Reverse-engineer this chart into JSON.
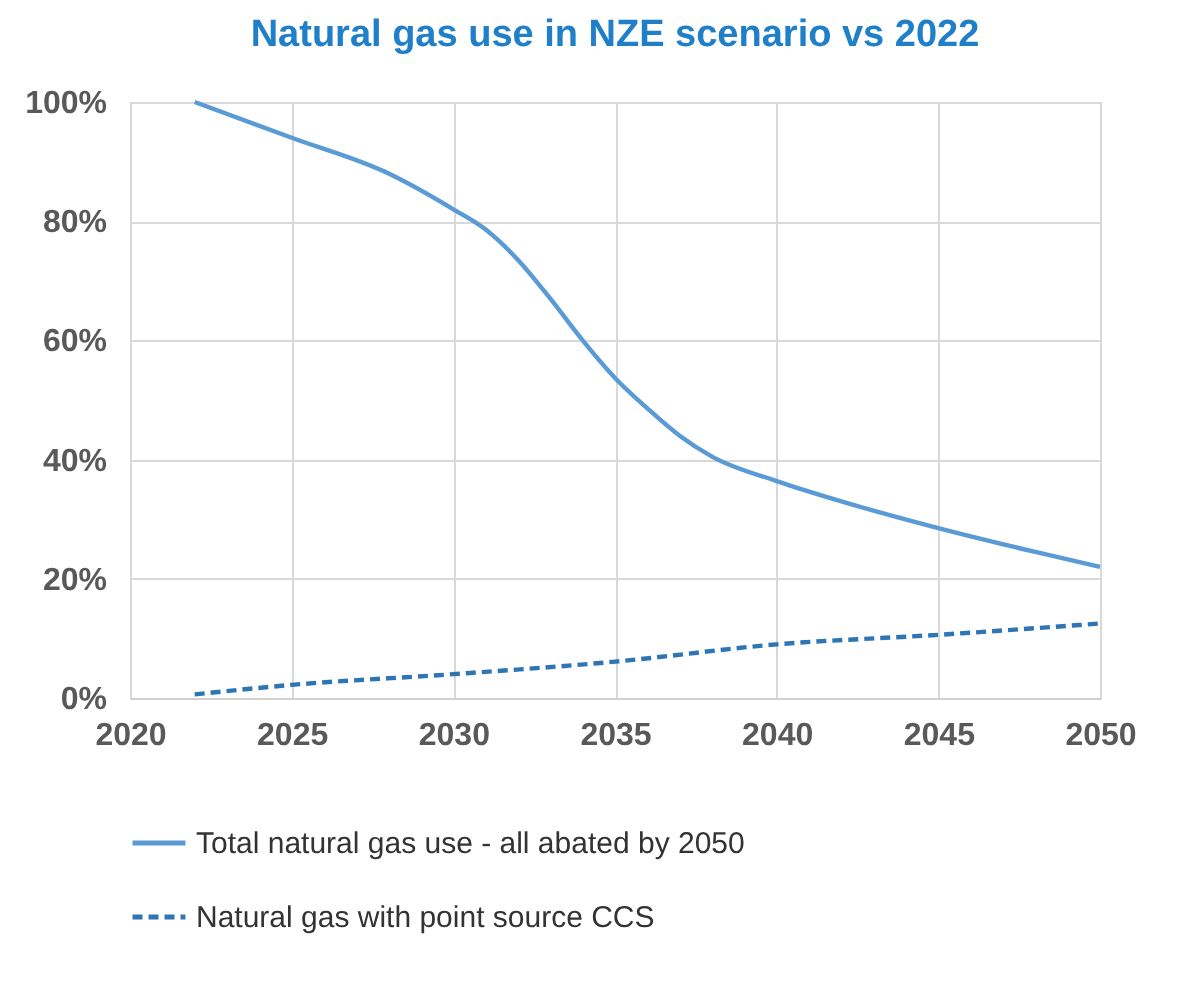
{
  "chart_data": {
    "type": "line",
    "title": "Natural gas use in NZE scenario vs 2022",
    "xlim": [
      2020,
      2050
    ],
    "xticks": [
      2020,
      2025,
      2030,
      2035,
      2040,
      2045,
      2050
    ],
    "ylim": [
      0,
      100
    ],
    "yticks": [
      {
        "value": 0,
        "label": "0%"
      },
      {
        "value": 20,
        "label": "20%"
      },
      {
        "value": 40,
        "label": "40%"
      },
      {
        "value": 60,
        "label": "60%"
      },
      {
        "value": 80,
        "label": "80%"
      },
      {
        "value": 100,
        "label": "100%"
      }
    ],
    "grid": true,
    "legend": "bottom",
    "series": [
      {
        "name": "Total natural gas use - all abated by 2050",
        "color": "#5b9bd5",
        "line_style": "solid",
        "x": [
          2022,
          2025,
          2028,
          2030,
          2031,
          2032,
          2033,
          2034,
          2035,
          2036,
          2037,
          2038,
          2040,
          2042,
          2045,
          2048,
          2050
        ],
        "values": [
          100,
          94,
          88,
          82,
          78.6,
          73.5,
          67,
          60,
          53.7,
          48.6,
          44,
          40.5,
          36.4,
          33,
          28.5,
          24.5,
          22
        ]
      },
      {
        "name": "Natural gas with point source CCS",
        "color": "#2e75b6",
        "line_style": "dashed",
        "x": [
          2022,
          2025,
          2030,
          2035,
          2040,
          2045,
          2050
        ],
        "values": [
          0.6,
          2.2,
          4,
          6.1,
          9,
          10.6,
          12.5
        ]
      }
    ]
  }
}
